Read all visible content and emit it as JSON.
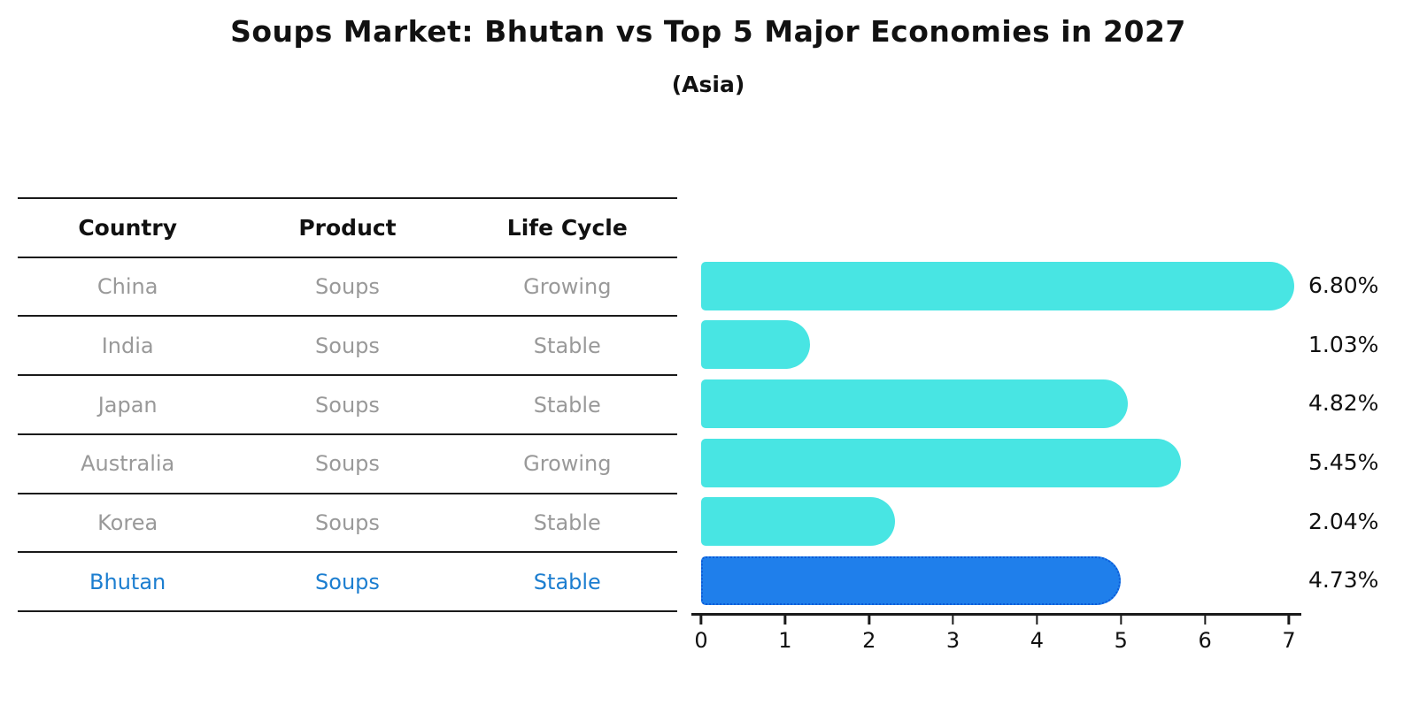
{
  "title": "Soups Market: Bhutan vs Top 5 Major Economies in 2027",
  "subtitle": "(Asia)",
  "table": {
    "headers": [
      "Country",
      "Product",
      "Life Cycle"
    ],
    "rows": [
      {
        "country": "China",
        "product": "Soups",
        "life_cycle": "Growing",
        "highlighted": false
      },
      {
        "country": "India",
        "product": "Soups",
        "life_cycle": "Stable",
        "highlighted": false
      },
      {
        "country": "Japan",
        "product": "Soups",
        "life_cycle": "Stable",
        "highlighted": false
      },
      {
        "country": "Australia",
        "product": "Soups",
        "life_cycle": "Growing",
        "highlighted": false
      },
      {
        "country": "Korea",
        "product": "Soups",
        "life_cycle": "Stable",
        "highlighted": false
      },
      {
        "country": "Bhutan",
        "product": "Soups",
        "life_cycle": "Stable",
        "highlighted": true
      }
    ]
  },
  "chart_data": {
    "type": "bar",
    "orientation": "horizontal",
    "title": "Soups Market: Bhutan vs Top 5 Major Economies in 2027",
    "subtitle": "(Asia)",
    "categories": [
      "China",
      "India",
      "Japan",
      "Australia",
      "Korea",
      "Bhutan"
    ],
    "values": [
      6.8,
      1.03,
      4.82,
      5.45,
      2.04,
      4.73
    ],
    "value_labels": [
      "6.80%",
      "1.03%",
      "4.82%",
      "5.45%",
      "2.04%",
      "4.73%"
    ],
    "x_ticks": [
      0,
      1,
      2,
      3,
      4,
      5,
      6,
      7
    ],
    "xlim": [
      0,
      7
    ],
    "grid": false,
    "legend": "none",
    "bar_color": "#48E5E3",
    "highlight_index": 5,
    "highlight_color": "#1F7FEB",
    "highlight_border_color": "#0C5BD8",
    "highlight_text_color": "#1C7ED0",
    "row_text_color": "#999999",
    "axis_color": "#1a1a1a"
  }
}
